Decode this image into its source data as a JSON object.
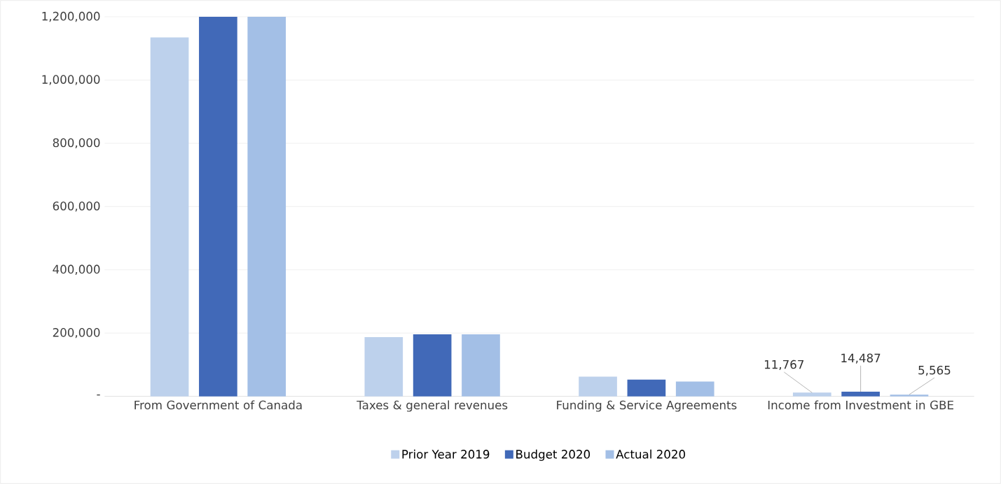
{
  "chart_data": {
    "type": "bar",
    "categories": [
      "From Government of Canada",
      "Taxes & general revenues",
      "Funding & Service Agreements",
      "Income from Investment in GBE"
    ],
    "series": [
      {
        "name": "Prior Year 2019",
        "color": "#bdd1ec",
        "values": [
          1135000,
          187000,
          62000,
          11767
        ],
        "value_labels": [
          null,
          null,
          null,
          "11,767"
        ]
      },
      {
        "name": "Budget 2020",
        "color": "#4169b8",
        "values": [
          1200000,
          196000,
          53000,
          14487
        ],
        "value_labels": [
          null,
          null,
          null,
          "14,487"
        ]
      },
      {
        "name": "Actual 2020",
        "color": "#a3bfe6",
        "values": [
          1200000,
          196000,
          47000,
          5565
        ],
        "value_labels": [
          null,
          null,
          null,
          "5,565"
        ]
      }
    ],
    "ylim": [
      0,
      1200000
    ],
    "yticks": [
      {
        "value": 0,
        "label": "-"
      },
      {
        "value": 200000,
        "label": "200,000"
      },
      {
        "value": 400000,
        "label": "400,000"
      },
      {
        "value": 600000,
        "label": "600,000"
      },
      {
        "value": 800000,
        "label": "800,000"
      },
      {
        "value": 1000000,
        "label": "1,000,000"
      },
      {
        "value": 1200000,
        "label": "1,200,000"
      }
    ],
    "grid": "y",
    "legend": "bottom"
  }
}
